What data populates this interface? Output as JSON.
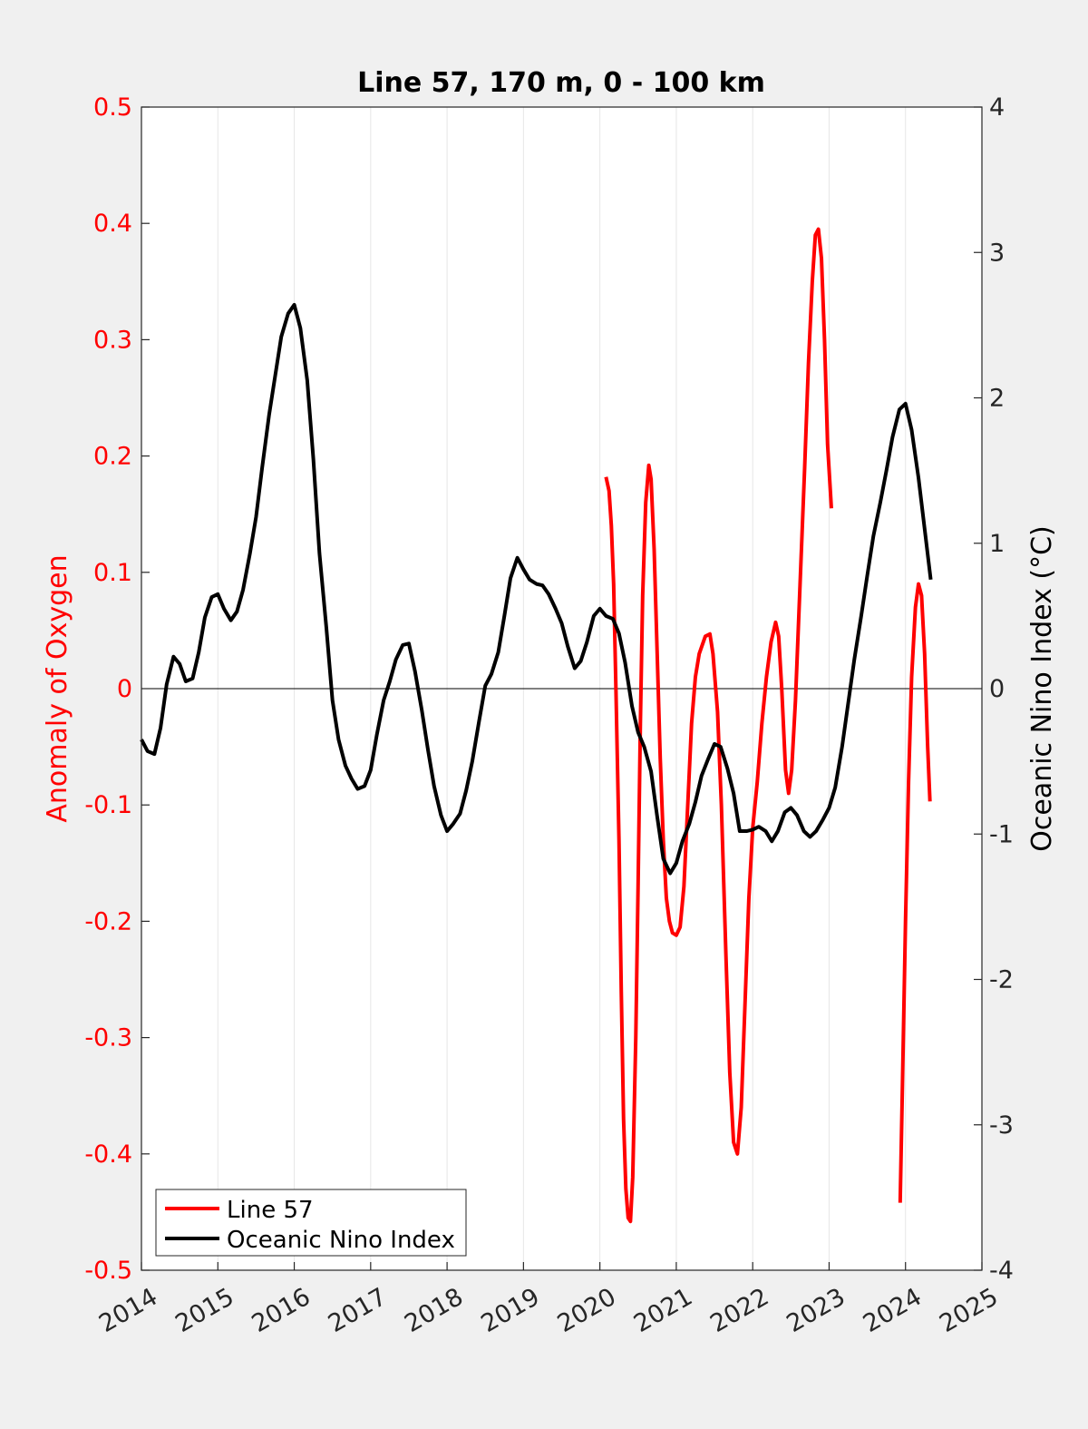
{
  "chart_data": {
    "type": "line",
    "title": "Line 57, 170 m, 0 - 100 km",
    "ylabel_left": "Anomaly of Oxygen",
    "ylabel_right": "Oceanic Nino Index (°C)",
    "xlim": [
      2014,
      2025
    ],
    "ylim_left": [
      -0.5,
      0.5
    ],
    "ylim_right": [
      -4,
      4
    ],
    "x_ticks": [
      "2014",
      "2015",
      "2016",
      "2017",
      "2018",
      "2019",
      "2020",
      "2021",
      "2022",
      "2023",
      "2024",
      "2025"
    ],
    "y_left_ticks": [
      "0.5",
      "0.4",
      "0.3",
      "0.2",
      "0.1",
      "0",
      "-0.1",
      "-0.2",
      "-0.3",
      "-0.4",
      "-0.5"
    ],
    "y_right_ticks": [
      "4",
      "3",
      "2",
      "1",
      "0",
      "-1",
      "-2",
      "-3",
      "-4"
    ],
    "grid": "vertical",
    "zero_line": true,
    "legend_position": "bottom-left",
    "colors": {
      "line57": "#ff0000",
      "oni": "#000000",
      "left_axis": "#ff0000",
      "right_axis": "#000000"
    },
    "series": [
      {
        "name": "Line 57",
        "axis": "left",
        "points": [
          [
            2020.08,
            0.182
          ],
          [
            2020.12,
            0.17
          ],
          [
            2020.15,
            0.14
          ],
          [
            2020.18,
            0.09
          ],
          [
            2020.21,
            0.0
          ],
          [
            2020.25,
            -0.13
          ],
          [
            2020.28,
            -0.26
          ],
          [
            2020.31,
            -0.37
          ],
          [
            2020.34,
            -0.43
          ],
          [
            2020.37,
            -0.455
          ],
          [
            2020.4,
            -0.458
          ],
          [
            2020.43,
            -0.42
          ],
          [
            2020.47,
            -0.3
          ],
          [
            2020.5,
            -0.17
          ],
          [
            2020.53,
            -0.03
          ],
          [
            2020.56,
            0.08
          ],
          [
            2020.6,
            0.16
          ],
          [
            2020.64,
            0.192
          ],
          [
            2020.67,
            0.18
          ],
          [
            2020.71,
            0.12
          ],
          [
            2020.75,
            0.03
          ],
          [
            2020.79,
            -0.06
          ],
          [
            2020.83,
            -0.13
          ],
          [
            2020.87,
            -0.18
          ],
          [
            2020.91,
            -0.2
          ],
          [
            2020.95,
            -0.21
          ],
          [
            2021.0,
            -0.212
          ],
          [
            2021.05,
            -0.205
          ],
          [
            2021.1,
            -0.17
          ],
          [
            2021.15,
            -0.1
          ],
          [
            2021.2,
            -0.03
          ],
          [
            2021.25,
            0.01
          ],
          [
            2021.3,
            0.03
          ],
          [
            2021.38,
            0.045
          ],
          [
            2021.44,
            0.047
          ],
          [
            2021.48,
            0.03
          ],
          [
            2021.54,
            -0.02
          ],
          [
            2021.59,
            -0.1
          ],
          [
            2021.65,
            -0.23
          ],
          [
            2021.7,
            -0.33
          ],
          [
            2021.75,
            -0.39
          ],
          [
            2021.8,
            -0.4
          ],
          [
            2021.85,
            -0.36
          ],
          [
            2021.9,
            -0.27
          ],
          [
            2021.95,
            -0.18
          ],
          [
            2022.0,
            -0.12
          ],
          [
            2022.06,
            -0.08
          ],
          [
            2022.12,
            -0.03
          ],
          [
            2022.18,
            0.01
          ],
          [
            2022.24,
            0.04
          ],
          [
            2022.3,
            0.057
          ],
          [
            2022.34,
            0.045
          ],
          [
            2022.38,
            0.0
          ],
          [
            2022.43,
            -0.07
          ],
          [
            2022.47,
            -0.09
          ],
          [
            2022.51,
            -0.07
          ],
          [
            2022.56,
            -0.01
          ],
          [
            2022.62,
            0.09
          ],
          [
            2022.68,
            0.19
          ],
          [
            2022.73,
            0.28
          ],
          [
            2022.78,
            0.35
          ],
          [
            2022.82,
            0.39
          ],
          [
            2022.86,
            0.395
          ],
          [
            2022.9,
            0.37
          ],
          [
            2022.94,
            0.3
          ],
          [
            2022.98,
            0.21
          ],
          [
            2023.03,
            0.155
          ],
          null,
          [
            2023.93,
            -0.442
          ],
          [
            2023.96,
            -0.34
          ],
          [
            2024.0,
            -0.2
          ],
          [
            2024.04,
            -0.08
          ],
          [
            2024.08,
            0.01
          ],
          [
            2024.13,
            0.07
          ],
          [
            2024.17,
            0.09
          ],
          [
            2024.21,
            0.08
          ],
          [
            2024.25,
            0.03
          ],
          [
            2024.29,
            -0.05
          ],
          [
            2024.32,
            -0.097
          ]
        ]
      },
      {
        "name": "Oceanic Nino Index",
        "axis": "right",
        "points": [
          [
            2014.0,
            -0.35
          ],
          [
            2014.08,
            -0.43
          ],
          [
            2014.17,
            -0.45
          ],
          [
            2014.25,
            -0.27
          ],
          [
            2014.33,
            0.03
          ],
          [
            2014.42,
            0.22
          ],
          [
            2014.5,
            0.17
          ],
          [
            2014.58,
            0.05
          ],
          [
            2014.67,
            0.07
          ],
          [
            2014.75,
            0.25
          ],
          [
            2014.83,
            0.49
          ],
          [
            2014.92,
            0.63
          ],
          [
            2015.0,
            0.65
          ],
          [
            2015.08,
            0.55
          ],
          [
            2015.17,
            0.47
          ],
          [
            2015.25,
            0.53
          ],
          [
            2015.33,
            0.68
          ],
          [
            2015.42,
            0.93
          ],
          [
            2015.5,
            1.18
          ],
          [
            2015.58,
            1.52
          ],
          [
            2015.67,
            1.88
          ],
          [
            2015.75,
            2.15
          ],
          [
            2015.83,
            2.42
          ],
          [
            2015.92,
            2.58
          ],
          [
            2016.0,
            2.64
          ],
          [
            2016.08,
            2.48
          ],
          [
            2016.17,
            2.12
          ],
          [
            2016.25,
            1.58
          ],
          [
            2016.33,
            0.93
          ],
          [
            2016.42,
            0.42
          ],
          [
            2016.5,
            -0.08
          ],
          [
            2016.58,
            -0.35
          ],
          [
            2016.67,
            -0.53
          ],
          [
            2016.75,
            -0.62
          ],
          [
            2016.83,
            -0.69
          ],
          [
            2016.92,
            -0.67
          ],
          [
            2017.0,
            -0.56
          ],
          [
            2017.08,
            -0.32
          ],
          [
            2017.17,
            -0.08
          ],
          [
            2017.25,
            0.05
          ],
          [
            2017.33,
            0.2
          ],
          [
            2017.42,
            0.3
          ],
          [
            2017.5,
            0.31
          ],
          [
            2017.58,
            0.12
          ],
          [
            2017.67,
            -0.15
          ],
          [
            2017.75,
            -0.42
          ],
          [
            2017.83,
            -0.67
          ],
          [
            2017.92,
            -0.87
          ],
          [
            2018.0,
            -0.98
          ],
          [
            2018.08,
            -0.93
          ],
          [
            2018.17,
            -0.86
          ],
          [
            2018.25,
            -0.7
          ],
          [
            2018.33,
            -0.5
          ],
          [
            2018.42,
            -0.22
          ],
          [
            2018.5,
            0.02
          ],
          [
            2018.58,
            0.1
          ],
          [
            2018.67,
            0.25
          ],
          [
            2018.75,
            0.5
          ],
          [
            2018.83,
            0.76
          ],
          [
            2018.92,
            0.9
          ],
          [
            2019.0,
            0.82
          ],
          [
            2019.08,
            0.75
          ],
          [
            2019.17,
            0.72
          ],
          [
            2019.25,
            0.71
          ],
          [
            2019.33,
            0.65
          ],
          [
            2019.42,
            0.55
          ],
          [
            2019.5,
            0.45
          ],
          [
            2019.58,
            0.29
          ],
          [
            2019.67,
            0.14
          ],
          [
            2019.75,
            0.19
          ],
          [
            2019.83,
            0.32
          ],
          [
            2019.92,
            0.5
          ],
          [
            2020.0,
            0.55
          ],
          [
            2020.08,
            0.5
          ],
          [
            2020.17,
            0.48
          ],
          [
            2020.25,
            0.38
          ],
          [
            2020.33,
            0.18
          ],
          [
            2020.42,
            -0.12
          ],
          [
            2020.5,
            -0.3
          ],
          [
            2020.58,
            -0.4
          ],
          [
            2020.67,
            -0.57
          ],
          [
            2020.75,
            -0.88
          ],
          [
            2020.83,
            -1.17
          ],
          [
            2020.92,
            -1.27
          ],
          [
            2021.0,
            -1.2
          ],
          [
            2021.08,
            -1.05
          ],
          [
            2021.17,
            -0.93
          ],
          [
            2021.25,
            -0.78
          ],
          [
            2021.33,
            -0.6
          ],
          [
            2021.42,
            -0.48
          ],
          [
            2021.5,
            -0.38
          ],
          [
            2021.58,
            -0.4
          ],
          [
            2021.67,
            -0.55
          ],
          [
            2021.75,
            -0.72
          ],
          [
            2021.83,
            -0.98
          ],
          [
            2021.92,
            -0.98
          ],
          [
            2022.0,
            -0.97
          ],
          [
            2022.08,
            -0.95
          ],
          [
            2022.17,
            -0.98
          ],
          [
            2022.25,
            -1.05
          ],
          [
            2022.33,
            -0.98
          ],
          [
            2022.42,
            -0.85
          ],
          [
            2022.5,
            -0.82
          ],
          [
            2022.58,
            -0.87
          ],
          [
            2022.67,
            -0.98
          ],
          [
            2022.75,
            -1.02
          ],
          [
            2022.83,
            -0.98
          ],
          [
            2022.92,
            -0.9
          ],
          [
            2023.0,
            -0.82
          ],
          [
            2023.08,
            -0.68
          ],
          [
            2023.17,
            -0.4
          ],
          [
            2023.25,
            -0.1
          ],
          [
            2023.33,
            0.2
          ],
          [
            2023.42,
            0.5
          ],
          [
            2023.5,
            0.78
          ],
          [
            2023.58,
            1.05
          ],
          [
            2023.67,
            1.28
          ],
          [
            2023.75,
            1.5
          ],
          [
            2023.83,
            1.73
          ],
          [
            2023.92,
            1.92
          ],
          [
            2024.0,
            1.96
          ],
          [
            2024.08,
            1.78
          ],
          [
            2024.17,
            1.45
          ],
          [
            2024.25,
            1.1
          ],
          [
            2024.33,
            0.75
          ]
        ]
      }
    ]
  }
}
